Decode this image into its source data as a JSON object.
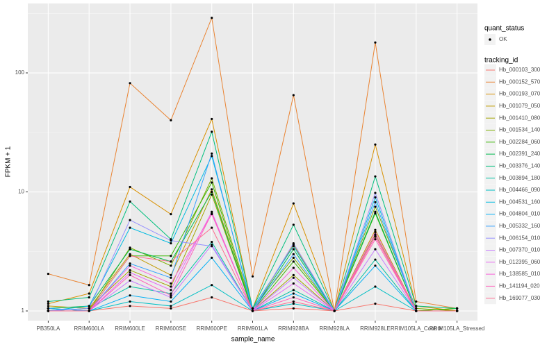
{
  "chart_data": {
    "type": "line",
    "x_label": "sample_name",
    "y_label": "FPKM + 1",
    "log_scale": true,
    "grid": true,
    "categories": [
      "PB350LA",
      "RRIM600LA",
      "RRIM600LE",
      "RRIM600SE",
      "RRIM600PE",
      "RRIM901LA",
      "RRIM928BA",
      "RRIM928LA",
      "RRIM928LE",
      "RRIM105LA_Control",
      "RRIM105LA_Stressed"
    ],
    "ylim": [
      0.829,
      383
    ],
    "yticks": [
      1,
      10,
      100
    ],
    "shape_legend": {
      "title": "quant_status",
      "labels": [
        "OK"
      ]
    },
    "legend_title": "tracking_id",
    "series": [
      {
        "name": "Hb_000103_300",
        "color": "#F8766D",
        "values": [
          1.05,
          1.0,
          1.1,
          1.05,
          1.3,
          1.0,
          1.05,
          1.0,
          1.15,
          1.0,
          1.0
        ]
      },
      {
        "name": "Hb_000152_570",
        "color": "#EA8331",
        "values": [
          2.05,
          1.65,
          82,
          40,
          290,
          1.95,
          65,
          1.0,
          180,
          1.2,
          1.05
        ]
      },
      {
        "name": "Hb_000193_070",
        "color": "#D89000",
        "values": [
          1.15,
          1.4,
          11,
          6.5,
          41,
          1.05,
          8,
          1.0,
          25,
          1.1,
          1.0
        ]
      },
      {
        "name": "Hb_001079_050",
        "color": "#C09B00",
        "values": [
          1.1,
          1.05,
          3.0,
          2.0,
          10.5,
          1.0,
          3.6,
          1.0,
          4.8,
          1.0,
          1.05
        ]
      },
      {
        "name": "Hb_001410_080",
        "color": "#A3A500",
        "values": [
          1.0,
          1.05,
          2.2,
          1.6,
          9.5,
          1.0,
          2.0,
          1.0,
          4.4,
          1.0,
          1.0
        ]
      },
      {
        "name": "Hb_001534_140",
        "color": "#7CAE00",
        "values": [
          1.05,
          1.0,
          3.4,
          2.4,
          13,
          1.05,
          2.8,
          1.0,
          7.5,
          1.05,
          1.0
        ]
      },
      {
        "name": "Hb_002284_060",
        "color": "#39B600",
        "values": [
          1.0,
          1.0,
          2.9,
          2.9,
          12,
          1.0,
          2.6,
          1.0,
          6.6,
          1.0,
          1.05
        ]
      },
      {
        "name": "Hb_002391_240",
        "color": "#00BB4E",
        "values": [
          1.05,
          1.1,
          3.3,
          2.6,
          10,
          1.0,
          3.3,
          1.0,
          6.8,
          1.0,
          1.0
        ]
      },
      {
        "name": "Hb_003376_140",
        "color": "#00BF7D",
        "values": [
          1.2,
          1.3,
          8.3,
          4.0,
          32,
          1.05,
          5.3,
          1.0,
          13.5,
          1.1,
          1.05
        ]
      },
      {
        "name": "Hb_003894_180",
        "color": "#00C1A3",
        "values": [
          1.0,
          1.05,
          1.6,
          1.4,
          3.8,
          1.0,
          1.5,
          1.0,
          2.7,
          1.0,
          1.0
        ]
      },
      {
        "name": "Hb_004466_090",
        "color": "#00BFC4",
        "values": [
          1.05,
          1.0,
          1.2,
          1.1,
          1.65,
          1.0,
          1.15,
          1.0,
          1.6,
          1.0,
          1.0
        ]
      },
      {
        "name": "Hb_004531_160",
        "color": "#00BAE0",
        "values": [
          1.0,
          1.1,
          5.0,
          3.7,
          20,
          1.05,
          3.5,
          1.0,
          9,
          1.0,
          1.0
        ]
      },
      {
        "name": "Hb_004804_010",
        "color": "#00B0F6",
        "values": [
          1.0,
          1.0,
          1.35,
          1.2,
          2.8,
          1.0,
          1.4,
          1.0,
          2.4,
          1.0,
          1.0
        ]
      },
      {
        "name": "Hb_005332_160",
        "color": "#35A2FF",
        "values": [
          1.05,
          1.0,
          2.5,
          1.9,
          21,
          1.0,
          3.0,
          1.0,
          8.2,
          1.0,
          1.0
        ]
      },
      {
        "name": "Hb_006154_010",
        "color": "#9590FF",
        "values": [
          1.0,
          1.05,
          5.8,
          3.9,
          3.5,
          1.0,
          3.7,
          1.0,
          9.8,
          1.0,
          1.0
        ]
      },
      {
        "name": "Hb_007370_010",
        "color": "#C77CFF",
        "values": [
          1.0,
          1.0,
          1.8,
          1.3,
          3.6,
          1.0,
          1.9,
          1.0,
          3.3,
          1.0,
          1.0
        ]
      },
      {
        "name": "Hb_012395_060",
        "color": "#E76BF3",
        "values": [
          1.0,
          1.0,
          2.1,
          1.5,
          6.8,
          1.0,
          1.7,
          1.0,
          4.3,
          1.0,
          1.0
        ]
      },
      {
        "name": "Hb_138585_010",
        "color": "#FA62DB",
        "values": [
          1.0,
          1.0,
          2.4,
          1.7,
          6.5,
          1.0,
          2.3,
          1.0,
          4.6,
          1.0,
          1.0
        ]
      },
      {
        "name": "Hb_141194_020",
        "color": "#FF62BC",
        "values": [
          1.0,
          1.0,
          2.0,
          1.35,
          6.6,
          1.0,
          1.3,
          1.0,
          4.0,
          1.0,
          1.0
        ]
      },
      {
        "name": "Hb_169077_030",
        "color": "#FF6C91",
        "values": [
          1.0,
          1.0,
          2.9,
          2.6,
          5.0,
          1.0,
          1.2,
          1.0,
          4.2,
          1.0,
          1.0
        ]
      }
    ]
  }
}
